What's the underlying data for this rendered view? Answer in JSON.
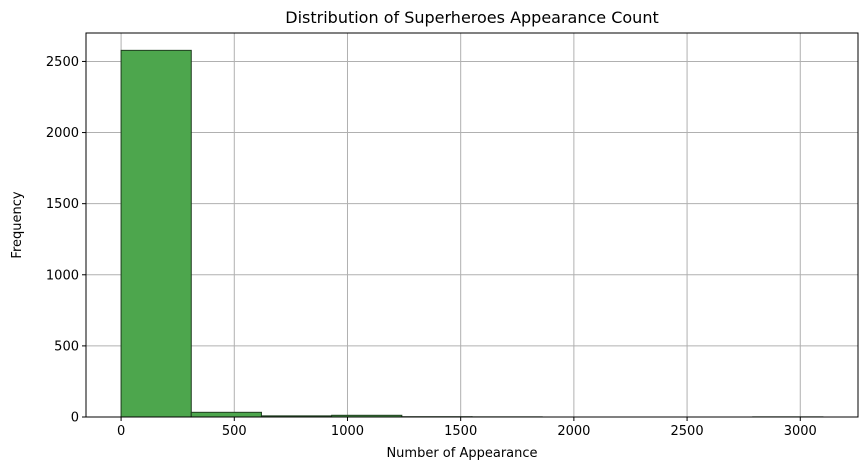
{
  "chart_data": {
    "type": "bar",
    "title": "Distribution of Superheroes Appearance Count",
    "xlabel": "Number of Appearance",
    "ylabel": "Frequency",
    "bins": [
      {
        "start": 0,
        "end": 310,
        "value": 2578
      },
      {
        "start": 310,
        "end": 620,
        "value": 33
      },
      {
        "start": 620,
        "end": 930,
        "value": 8
      },
      {
        "start": 930,
        "end": 1240,
        "value": 12
      },
      {
        "start": 1240,
        "end": 1550,
        "value": 2
      },
      {
        "start": 1550,
        "end": 1860,
        "value": 1
      },
      {
        "start": 1860,
        "end": 2170,
        "value": 0
      },
      {
        "start": 2170,
        "end": 2480,
        "value": 0
      },
      {
        "start": 2480,
        "end": 2790,
        "value": 0
      },
      {
        "start": 2790,
        "end": 3100,
        "value": 1
      }
    ],
    "xlim": [
      -155,
      3255
    ],
    "ylim": [
      0,
      2700
    ],
    "x_ticks": [
      0,
      500,
      1000,
      1500,
      2000,
      2500,
      3000
    ],
    "y_ticks": [
      0,
      500,
      1000,
      1500,
      2000,
      2500
    ],
    "x_tick_labels": [
      "0",
      "500",
      "1000",
      "1500",
      "2000",
      "2500",
      "3000"
    ],
    "y_tick_labels": [
      "0",
      "500",
      "1000",
      "1500",
      "2000",
      "2500"
    ],
    "grid": true,
    "bar_color": "#4da64d",
    "bar_edge_color": "#1f3d1f",
    "grid_color": "#b0b0b0"
  }
}
